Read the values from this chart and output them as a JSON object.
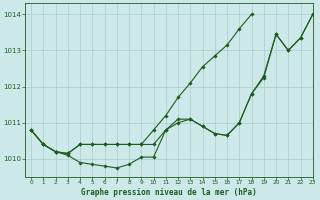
{
  "bg_color": "#cce8e8",
  "grid_color": "#aacccc",
  "line_color": "#1e5c1e",
  "xlabel": "Graphe pression niveau de la mer (hPa)",
  "xlim": [
    -0.5,
    23
  ],
  "ylim": [
    1009.5,
    1014.3
  ],
  "yticks": [
    1010,
    1011,
    1012,
    1013,
    1014
  ],
  "xticks": [
    0,
    1,
    2,
    3,
    4,
    5,
    6,
    7,
    8,
    9,
    10,
    11,
    12,
    13,
    14,
    15,
    16,
    17,
    18,
    19,
    20,
    21,
    22,
    23
  ],
  "series": [
    {
      "x": [
        0,
        1,
        2,
        3,
        4,
        5,
        6,
        7,
        8,
        9,
        10,
        11,
        12,
        13,
        14,
        15,
        16,
        17,
        18,
        19,
        20,
        21,
        22,
        23
      ],
      "y": [
        1010.8,
        1010.4,
        1010.2,
        1010.1,
        1009.9,
        1009.85,
        1009.8,
        1009.75,
        1009.85,
        1010.05,
        1010.05,
        1010.8,
        1011.0,
        1011.1,
        1010.9,
        1010.7,
        1010.65,
        1011.0,
        1011.8,
        1012.3,
        1013.45,
        1013.0,
        1013.35,
        1014.0
      ]
    },
    {
      "x": [
        0,
        1,
        2,
        3,
        4,
        5,
        6,
        7,
        8,
        9,
        10,
        11,
        12,
        13,
        14,
        15,
        16,
        17,
        18,
        19,
        20,
        21,
        22,
        23
      ],
      "y": [
        1010.8,
        1010.4,
        1010.2,
        1010.15,
        1010.4,
        1010.4,
        1010.4,
        1010.4,
        1010.4,
        1010.4,
        1010.4,
        1010.8,
        1011.1,
        1011.1,
        1010.9,
        1010.7,
        1010.65,
        1011.0,
        1011.8,
        1012.25,
        1013.45,
        1013.0,
        1013.35,
        1014.0
      ]
    },
    {
      "x": [
        0,
        1,
        2,
        3,
        4,
        5,
        6,
        7,
        8,
        9,
        10,
        11,
        12,
        13,
        14,
        15,
        16,
        17,
        18
      ],
      "y": [
        1010.8,
        1010.4,
        1010.2,
        1010.15,
        1010.4,
        1010.4,
        1010.4,
        1010.4,
        1010.4,
        1010.4,
        1010.8,
        1011.2,
        1011.7,
        1012.1,
        1012.55,
        1012.85,
        1013.15,
        1013.6,
        1014.0
      ]
    }
  ]
}
